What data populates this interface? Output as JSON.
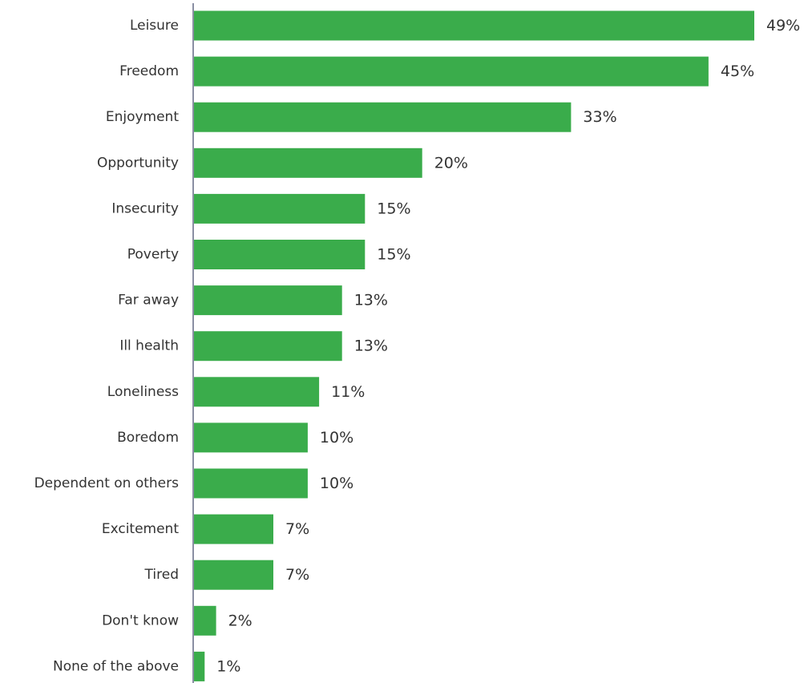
{
  "chart_data": {
    "type": "bar",
    "orientation": "horizontal",
    "categories": [
      "Leisure",
      "Freedom",
      "Enjoyment",
      "Opportunity",
      "Insecurity",
      "Poverty",
      "Far away",
      "Ill health",
      "Loneliness",
      "Boredom",
      "Dependent on others",
      "Excitement",
      "Tired",
      "Don't know",
      "None of the above"
    ],
    "values": [
      49,
      45,
      33,
      20,
      15,
      15,
      13,
      13,
      11,
      10,
      10,
      7,
      7,
      2,
      1
    ],
    "value_labels": [
      "49%",
      "45%",
      "33%",
      "20%",
      "15%",
      "15%",
      "13%",
      "13%",
      "11%",
      "10%",
      "10%",
      "7%",
      "7%",
      "2%",
      "1%"
    ],
    "unit": "%",
    "xlim": [
      0,
      49
    ],
    "grid": false,
    "legend": "none",
    "bar_color": "#3aac4b",
    "axis_color": "#8a8fa3"
  }
}
